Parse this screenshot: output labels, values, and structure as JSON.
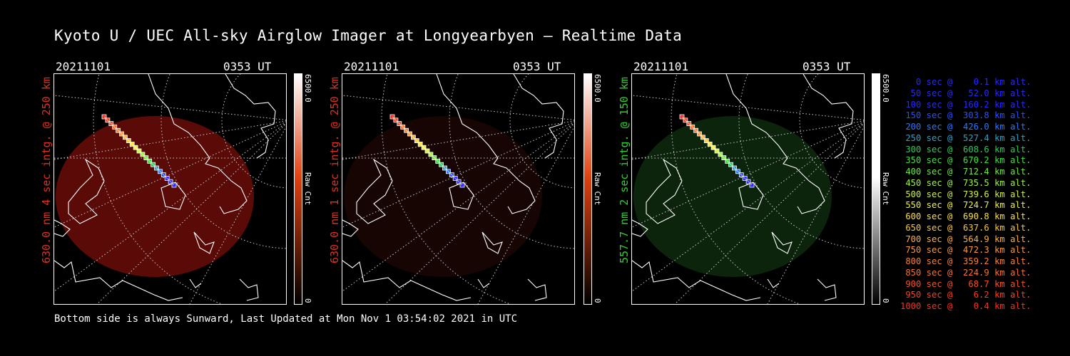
{
  "title": "Kyoto U / UEC All-sky Airglow Imager at Longyearbyen — Realtime Data",
  "footer": "Bottom side is always Sunward, Last Updated at Mon Nov  1 03:54:02 2021 in UTC",
  "panels": [
    {
      "date": "20211101",
      "time": "0353 UT",
      "label": "630.0 nm 4 sec intg. @ 250 km",
      "label_color": "#e03020",
      "cbar_max": "6500.0",
      "cbar_min": "0",
      "cbar_unit": "Raw Cnt",
      "cbar_color": "#e04010",
      "glow_color": "#6a0c08",
      "glow_level": 0.85
    },
    {
      "date": "20211101",
      "time": "0353 UT",
      "label": "630.0 nm 1 sec intg. @ 250 km",
      "label_color": "#e03020",
      "cbar_max": "6500.0",
      "cbar_min": "0",
      "cbar_unit": "Raw Cnt",
      "cbar_color": "#e04010",
      "glow_color": "#1a0604",
      "glow_level": 0.85
    },
    {
      "date": "20211101",
      "time": "0353 UT",
      "label": "557.7 nm 2 sec intg. @ 150 km",
      "label_color": "#30d030",
      "cbar_max": "6500.0",
      "cbar_min": "0",
      "cbar_unit": "Raw Cnt",
      "cbar_color": "#ffffff",
      "glow_color": "#0d2a0d",
      "glow_level": 0.85
    }
  ],
  "legend": [
    {
      "text": "   0 sec @    0.1 km alt.",
      "color": "#2828ff"
    },
    {
      "text": "  50 sec @   52.0 km alt.",
      "color": "#2828ff"
    },
    {
      "text": " 100 sec @  160.2 km alt.",
      "color": "#2828ff"
    },
    {
      "text": " 150 sec @  303.8 km alt.",
      "color": "#2850ff"
    },
    {
      "text": " 200 sec @  426.0 km alt.",
      "color": "#2878ff"
    },
    {
      "text": " 250 sec @  527.4 km alt.",
      "color": "#30a0c8"
    },
    {
      "text": " 300 sec @  608.6 km alt.",
      "color": "#30c860"
    },
    {
      "text": " 350 sec @  670.2 km alt.",
      "color": "#40e040"
    },
    {
      "text": " 400 sec @  712.4 km alt.",
      "color": "#70e840"
    },
    {
      "text": " 450 sec @  735.5 km alt.",
      "color": "#a0f040"
    },
    {
      "text": " 500 sec @  739.6 km alt.",
      "color": "#d0f040"
    },
    {
      "text": " 550 sec @  724.7 km alt.",
      "color": "#f0f040"
    },
    {
      "text": " 600 sec @  690.8 km alt.",
      "color": "#f8e040"
    },
    {
      "text": " 650 sec @  637.6 km alt.",
      "color": "#f8c840"
    },
    {
      "text": " 700 sec @  564.9 km alt.",
      "color": "#f8b040"
    },
    {
      "text": " 750 sec @  472.3 km alt.",
      "color": "#f89838"
    },
    {
      "text": " 800 sec @  359.2 km alt.",
      "color": "#f88030"
    },
    {
      "text": " 850 sec @  224.9 km alt.",
      "color": "#f87030"
    },
    {
      "text": " 900 sec @   68.7 km alt.",
      "color": "#f85028"
    },
    {
      "text": " 950 sec @    6.2 km alt.",
      "color": "#f84020"
    },
    {
      "text": "1000 sec @    0.4 km alt.",
      "color": "#f83020"
    }
  ]
}
